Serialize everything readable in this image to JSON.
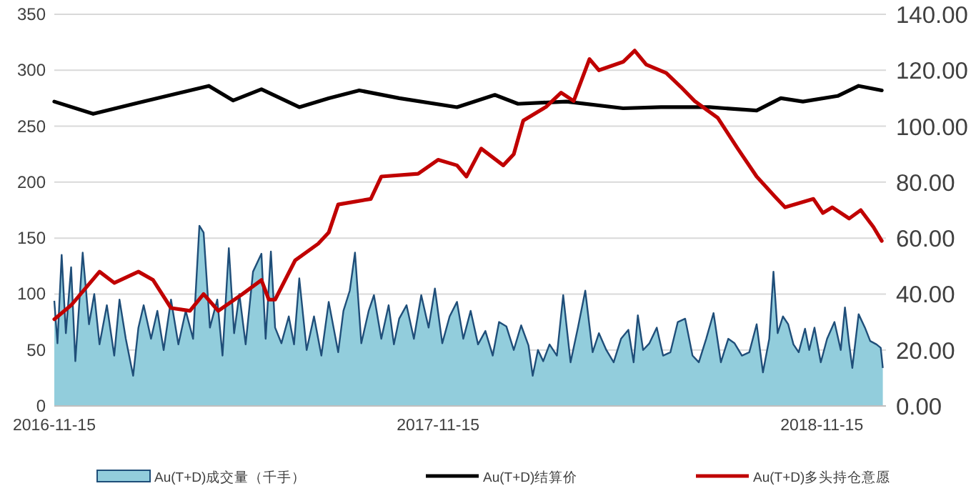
{
  "chart_data": {
    "type": "line",
    "xlim": [
      "2016-11-15",
      "2019-01-15"
    ],
    "xticks": [
      "2016-11-15",
      "2017-11-15",
      "2018-11-15"
    ],
    "ylim": [
      0,
      350
    ],
    "yticks": [
      0,
      50,
      100,
      150,
      200,
      250,
      300,
      350
    ],
    "y2lim": [
      0,
      140
    ],
    "y2ticks": [
      {
        "value": 0,
        "label": "0.00"
      },
      {
        "value": 20,
        "label": "20.00"
      },
      {
        "value": 40,
        "label": "40.00"
      },
      {
        "value": 60,
        "label": "60.00"
      },
      {
        "value": 80,
        "label": "80.00"
      },
      {
        "value": 100,
        "label": "100.00"
      },
      {
        "value": 120,
        "label": "120.00"
      },
      {
        "value": 140,
        "label": "140.00"
      }
    ],
    "grid": "y",
    "legend": "bottom",
    "series": [
      {
        "name": "Au(T+D)成交量（千手）",
        "type": "area",
        "color": "#92cddc",
        "x": [
          "2016-11-15",
          "2016-11-18",
          "2016-11-22",
          "2016-11-26",
          "2016-12-01",
          "2016-12-05",
          "2016-12-12",
          "2016-12-18",
          "2016-12-23",
          "2016-12-28",
          "2017-01-04",
          "2017-01-11",
          "2017-01-16",
          "2017-01-22",
          "2017-01-29",
          "2017-02-03",
          "2017-02-08",
          "2017-02-15",
          "2017-02-21",
          "2017-02-27",
          "2017-03-06",
          "2017-03-13",
          "2017-03-20",
          "2017-03-27",
          "2017-04-02",
          "2017-04-06",
          "2017-04-12",
          "2017-04-19",
          "2017-04-24",
          "2017-04-30",
          "2017-05-05",
          "2017-05-10",
          "2017-05-16",
          "2017-05-23",
          "2017-05-31",
          "2017-06-04",
          "2017-06-09",
          "2017-06-13",
          "2017-06-19",
          "2017-06-26",
          "2017-07-01",
          "2017-07-06",
          "2017-07-13",
          "2017-07-20",
          "2017-07-27",
          "2017-08-03",
          "2017-08-12",
          "2017-08-17",
          "2017-08-23",
          "2017-08-28",
          "2017-09-03",
          "2017-09-10",
          "2017-09-15",
          "2017-09-22",
          "2017-09-29",
          "2017-10-04",
          "2017-10-09",
          "2017-10-16",
          "2017-10-23",
          "2017-10-30",
          "2017-11-06",
          "2017-11-12",
          "2017-11-19",
          "2017-11-26",
          "2017-12-03",
          "2017-12-09",
          "2017-12-16",
          "2017-12-23",
          "2017-12-30",
          "2018-01-06",
          "2018-01-12",
          "2018-01-19",
          "2018-01-26",
          "2018-02-02",
          "2018-02-09",
          "2018-02-13",
          "2018-02-18",
          "2018-02-23",
          "2018-03-01",
          "2018-03-08",
          "2018-03-14",
          "2018-03-21",
          "2018-03-28",
          "2018-04-04",
          "2018-04-11",
          "2018-04-17",
          "2018-04-24",
          "2018-05-01",
          "2018-05-08",
          "2018-05-15",
          "2018-05-20",
          "2018-05-24",
          "2018-05-29",
          "2018-06-04",
          "2018-06-11",
          "2018-06-17",
          "2018-06-24",
          "2018-07-01",
          "2018-07-08",
          "2018-07-15",
          "2018-07-21",
          "2018-07-28",
          "2018-08-04",
          "2018-08-11",
          "2018-08-18",
          "2018-08-24",
          "2018-08-31",
          "2018-09-07",
          "2018-09-14",
          "2018-09-20",
          "2018-09-26",
          "2018-09-30",
          "2018-10-04",
          "2018-10-09",
          "2018-10-14",
          "2018-10-19",
          "2018-10-24",
          "2018-10-30",
          "2018-11-03",
          "2018-11-08",
          "2018-11-14",
          "2018-11-20",
          "2018-11-27",
          "2018-12-03",
          "2018-12-07",
          "2018-12-11",
          "2018-12-14",
          "2018-12-20",
          "2018-12-26",
          "2018-12-31",
          "2019-01-06",
          "2019-01-10",
          "2019-01-12"
        ],
        "values": [
          94,
          56,
          135,
          65,
          124,
          40,
          137,
          73,
          100,
          55,
          90,
          45,
          95,
          60,
          27,
          70,
          90,
          60,
          85,
          50,
          95,
          55,
          85,
          60,
          161,
          155,
          70,
          95,
          45,
          141,
          65,
          100,
          55,
          120,
          136,
          60,
          138,
          70,
          56,
          80,
          55,
          114,
          50,
          80,
          45,
          93,
          48,
          85,
          103,
          137,
          56,
          85,
          99,
          60,
          90,
          55,
          78,
          90,
          60,
          99,
          70,
          105,
          56,
          80,
          93,
          60,
          85,
          55,
          67,
          45,
          75,
          71,
          50,
          72,
          54,
          27,
          50,
          40,
          55,
          45,
          99,
          39,
          70,
          103,
          48,
          65,
          50,
          39,
          60,
          68,
          39,
          81,
          50,
          56,
          70,
          45,
          48,
          75,
          78,
          45,
          39,
          60,
          83,
          39,
          60,
          56,
          45,
          48,
          73,
          30,
          60,
          120,
          65,
          80,
          73,
          55,
          48,
          69,
          50,
          70,
          39,
          60,
          75,
          50,
          88,
          55,
          34,
          82,
          70,
          58,
          55,
          52,
          34
        ]
      },
      {
        "name": "Au(T+D)结算价",
        "type": "line",
        "color": "#000000",
        "x": [
          "2016-11-15",
          "2016-12-22",
          "2017-02-03",
          "2017-04-11",
          "2017-05-04",
          "2017-05-31",
          "2017-07-06",
          "2017-08-03",
          "2017-09-01",
          "2017-10-09",
          "2017-12-03",
          "2018-01-08",
          "2018-01-30",
          "2018-03-17",
          "2018-05-10",
          "2018-06-15",
          "2018-07-31",
          "2018-09-14",
          "2018-10-07",
          "2018-10-28",
          "2018-11-30",
          "2018-12-20",
          "2019-01-11"
        ],
        "values": [
          272,
          261,
          271,
          286,
          273,
          283,
          267,
          275,
          282,
          275,
          267,
          278,
          270,
          272,
          266,
          267,
          267,
          264,
          275,
          272,
          277,
          286,
          282
        ]
      },
      {
        "name": "Au(T+D)多头持仓意愿",
        "type": "line",
        "axis": "y2",
        "color": "#c00000",
        "x": [
          "2016-11-15",
          "2016-12-01",
          "2016-12-28",
          "2017-01-11",
          "2017-02-03",
          "2017-02-17",
          "2017-03-06",
          "2017-03-24",
          "2017-04-06",
          "2017-04-20",
          "2017-05-13",
          "2017-05-31",
          "2017-06-07",
          "2017-06-13",
          "2017-07-02",
          "2017-07-24",
          "2017-08-03",
          "2017-08-12",
          "2017-09-12",
          "2017-09-22",
          "2017-10-27",
          "2017-11-15",
          "2017-12-03",
          "2017-12-12",
          "2017-12-26",
          "2018-01-16",
          "2018-01-26",
          "2018-02-04",
          "2018-02-26",
          "2018-03-12",
          "2018-03-24",
          "2018-04-08",
          "2018-04-17",
          "2018-05-10",
          "2018-05-21",
          "2018-06-01",
          "2018-06-20",
          "2018-07-04",
          "2018-07-17",
          "2018-08-08",
          "2018-08-27",
          "2018-09-14",
          "2018-10-01",
          "2018-10-11",
          "2018-11-07",
          "2018-11-16",
          "2018-11-25",
          "2018-12-11",
          "2018-12-22",
          "2019-01-03",
          "2019-01-11"
        ],
        "values": [
          31,
          36,
          48,
          44,
          48,
          45,
          35,
          34,
          40,
          34,
          40,
          45,
          38,
          38,
          52,
          58,
          62,
          72,
          74,
          82,
          83,
          88,
          86,
          82,
          92,
          86,
          90,
          102,
          107,
          112,
          109,
          124,
          120,
          123,
          127,
          122,
          119,
          114,
          109,
          103,
          92,
          82,
          75,
          71,
          74,
          69,
          71,
          67,
          70,
          64,
          59
        ]
      }
    ]
  }
}
